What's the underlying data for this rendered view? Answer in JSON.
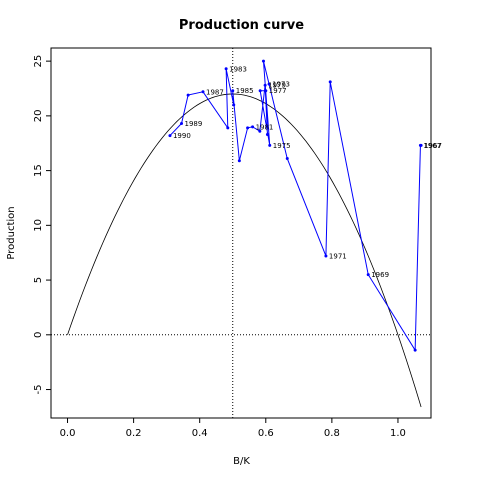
{
  "chart_data": {
    "type": "line",
    "title": "Production curve",
    "xlabel": "B/K",
    "ylabel": "Production",
    "xlim": [
      -0.05,
      1.1
    ],
    "ylim": [
      -7.6,
      26.2
    ],
    "xticks": [
      0.0,
      0.2,
      0.4,
      0.6,
      0.8,
      1.0
    ],
    "xtick_labels": [
      "0.0",
      "0.2",
      "0.4",
      "0.6",
      "0.8",
      "1.0"
    ],
    "yticks": [
      -5,
      0,
      5,
      10,
      15,
      20,
      25
    ],
    "ytick_labels": [
      "-5",
      "0",
      "5",
      "10",
      "15",
      "20",
      "25"
    ],
    "grid": false,
    "reference_lines": {
      "horizontal_y": 0,
      "vertical_x": 0.5
    },
    "curve": {
      "color": "#000000",
      "r": 0.176,
      "K": 1,
      "peak_x": 0.5,
      "peak_y": 22.0
    },
    "series": [
      {
        "color": "#0000ff",
        "points": [
          {
            "x": 1.07,
            "y": 17.3,
            "label": "1967"
          },
          {
            "x": 1.068,
            "y": 17.3,
            "label": "1967"
          },
          {
            "x": 1.052,
            "y": -1.4,
            "label": ""
          },
          {
            "x": 0.91,
            "y": 5.5,
            "label": "1969"
          },
          {
            "x": 0.795,
            "y": 23.1,
            "label": ""
          },
          {
            "x": 0.782,
            "y": 7.2,
            "label": "1971"
          },
          {
            "x": 0.665,
            "y": 16.1,
            "label": ""
          },
          {
            "x": 0.61,
            "y": 22.9,
            "label": "1973"
          },
          {
            "x": 0.593,
            "y": 25.0,
            "label": ""
          },
          {
            "x": 0.612,
            "y": 17.3,
            "label": "1975"
          },
          {
            "x": 0.583,
            "y": 22.3,
            "label": ""
          },
          {
            "x": 0.6,
            "y": 22.3,
            "label": "1977"
          },
          {
            "x": 0.605,
            "y": 18.3,
            "label": ""
          },
          {
            "x": 0.598,
            "y": 22.8,
            "label": "1979"
          },
          {
            "x": 0.582,
            "y": 18.6,
            "label": ""
          },
          {
            "x": 0.56,
            "y": 19.0,
            "label": "1981"
          },
          {
            "x": 0.545,
            "y": 18.9,
            "label": ""
          },
          {
            "x": 0.52,
            "y": 15.9,
            "label": ""
          },
          {
            "x": 0.5,
            "y": 22.3,
            "label": "1985"
          },
          {
            "x": 0.503,
            "y": 21.0,
            "label": ""
          },
          {
            "x": 0.48,
            "y": 24.3,
            "label": "1983"
          },
          {
            "x": 0.485,
            "y": 18.9,
            "label": ""
          },
          {
            "x": 0.41,
            "y": 22.2,
            "label": "1987"
          },
          {
            "x": 0.365,
            "y": 21.9,
            "label": ""
          },
          {
            "x": 0.345,
            "y": 19.3,
            "label": "1989"
          },
          {
            "x": 0.31,
            "y": 18.2,
            "label": "1990"
          }
        ]
      }
    ]
  }
}
